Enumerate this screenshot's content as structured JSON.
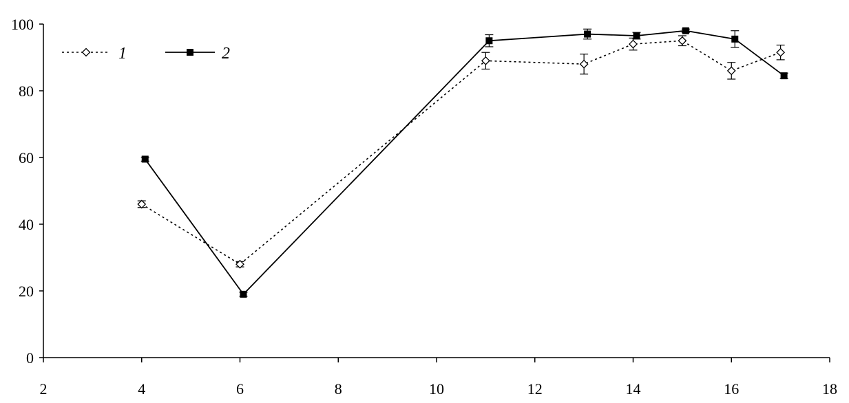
{
  "chart_data": {
    "type": "line",
    "title": "",
    "xlabel": "",
    "ylabel": "",
    "xlim": [
      2,
      18
    ],
    "ylim": [
      0,
      100
    ],
    "x_ticks": [
      "2",
      "4",
      "6",
      "8",
      "10",
      "12",
      "14",
      "16",
      "18"
    ],
    "y_ticks": [
      "0",
      "20",
      "40",
      "60",
      "80",
      "100"
    ],
    "grid": false,
    "legend_position": "top-left",
    "series": [
      {
        "name": "1",
        "style": "dotted",
        "marker": "open-diamond",
        "color": "#000000",
        "points": [
          {
            "x": 4,
            "y": 46,
            "err": 1.0
          },
          {
            "x": 6,
            "y": 28,
            "err": 0.8
          },
          {
            "x": 11,
            "y": 89,
            "err": 2.5
          },
          {
            "x": 13,
            "y": 88,
            "err": 3.0
          },
          {
            "x": 14,
            "y": 94,
            "err": 1.8
          },
          {
            "x": 15,
            "y": 95,
            "err": 1.5
          },
          {
            "x": 16,
            "y": 86,
            "err": 2.5
          },
          {
            "x": 17,
            "y": 91.5,
            "err": 2.2
          }
        ]
      },
      {
        "name": "2",
        "style": "solid",
        "marker": "filled-square",
        "color": "#000000",
        "points": [
          {
            "x": 4,
            "y": 59.5,
            "err": 0.6
          },
          {
            "x": 6,
            "y": 19,
            "err": 0.6
          },
          {
            "x": 11,
            "y": 95,
            "err": 1.8
          },
          {
            "x": 13,
            "y": 97,
            "err": 1.5
          },
          {
            "x": 14,
            "y": 96.5,
            "err": 1.0
          },
          {
            "x": 15,
            "y": 98,
            "err": 0.5
          },
          {
            "x": 16,
            "y": 95.5,
            "err": 2.5
          },
          {
            "x": 17,
            "y": 84.5,
            "err": 0.8
          }
        ]
      }
    ]
  }
}
